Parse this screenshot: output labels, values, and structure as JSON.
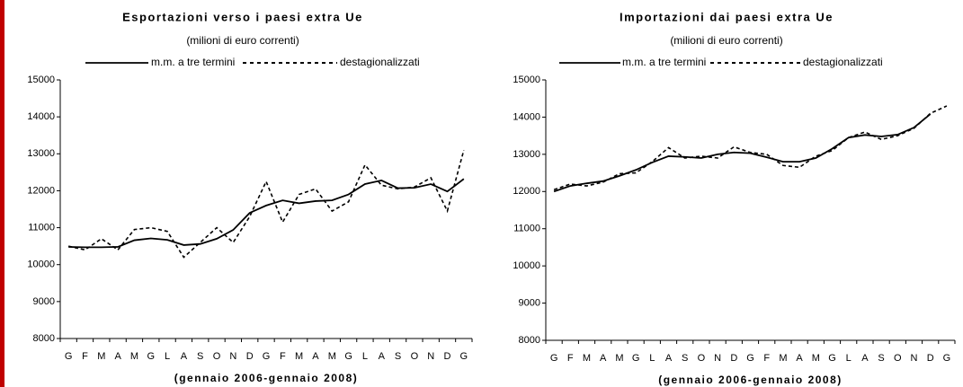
{
  "chart_data": [
    {
      "type": "line",
      "title": "Esportazioni verso i paesi extra Ue",
      "subtitle": "(milioni di euro correnti)",
      "x_label": "(gennaio 2006-gennaio 2008)",
      "categories": [
        "G",
        "F",
        "M",
        "A",
        "M",
        "G",
        "L",
        "A",
        "S",
        "O",
        "N",
        "D",
        "G",
        "F",
        "M",
        "A",
        "M",
        "G",
        "L",
        "A",
        "S",
        "O",
        "N",
        "D",
        "G"
      ],
      "series": [
        {
          "name": "m.m. a tre termini",
          "color": "#000000",
          "dash": false,
          "values": [
            10480,
            10470,
            10470,
            10480,
            10660,
            10710,
            10670,
            10530,
            10560,
            10700,
            10940,
            11400,
            11600,
            11740,
            11660,
            11720,
            11740,
            11900,
            12180,
            12280,
            12070,
            12080,
            12180,
            11980,
            12320
          ]
        },
        {
          "name": "destagionalizzati",
          "color": "#000000",
          "dash": true,
          "values": [
            10500,
            10400,
            10700,
            10400,
            10950,
            11000,
            10900,
            10200,
            10600,
            11000,
            10600,
            11300,
            12250,
            11150,
            11900,
            12050,
            11450,
            11700,
            12700,
            12150,
            12050,
            12100,
            12350,
            11450,
            13100
          ]
        }
      ],
      "ylim": [
        8000,
        15000
      ],
      "yticks": [
        8000,
        9000,
        10000,
        11000,
        12000,
        13000,
        14000,
        15000
      ]
    },
    {
      "type": "line",
      "title": "Importazioni dai paesi extra Ue",
      "subtitle": "(milioni di euro correnti)",
      "x_label": "(gennaio 2006-gennaio 2008)",
      "categories": [
        "G",
        "F",
        "M",
        "A",
        "M",
        "G",
        "L",
        "A",
        "S",
        "O",
        "N",
        "D",
        "G",
        "F",
        "M",
        "A",
        "M",
        "G",
        "L",
        "A",
        "S",
        "O",
        "N",
        "D",
        "G"
      ],
      "series": [
        {
          "name": "m.m. a tre termini",
          "color": "#000000",
          "dash": false,
          "values": [
            12000,
            12150,
            12220,
            12280,
            12420,
            12580,
            12780,
            12950,
            12930,
            12900,
            13000,
            13050,
            13030,
            12920,
            12800,
            12800,
            12900,
            13150,
            13450,
            13520,
            13480,
            13530,
            13720,
            14080,
            null
          ]
        },
        {
          "name": "destagionalizzati",
          "color": "#000000",
          "dash": true,
          "values": [
            12050,
            12200,
            12150,
            12250,
            12480,
            12500,
            12800,
            13180,
            12900,
            12950,
            12900,
            13200,
            13050,
            13000,
            12700,
            12650,
            12950,
            13100,
            13450,
            13600,
            13400,
            13500,
            13700,
            14100,
            14300
          ]
        }
      ],
      "ylim": [
        8000,
        15000
      ],
      "yticks": [
        8000,
        9000,
        10000,
        11000,
        12000,
        13000,
        14000,
        15000
      ]
    }
  ]
}
